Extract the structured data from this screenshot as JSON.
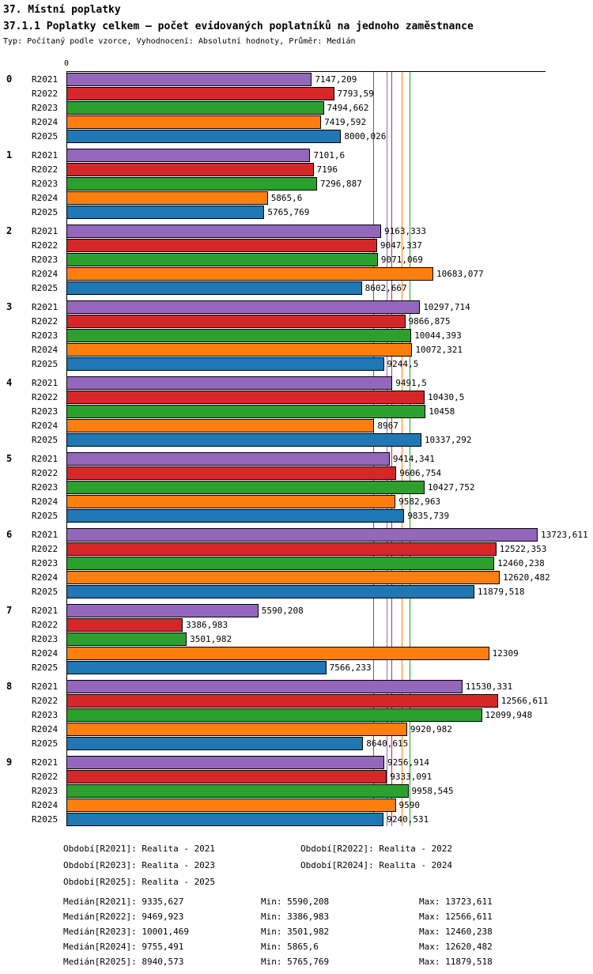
{
  "header": {
    "title": "37. Místní poplatky",
    "subtitle": "37.1.1 Poplatky celkem – počet evidovaných poplatníků na jednoho zaměstnance",
    "meta": "Typ: Počítaný podle vzorce, Vyhodnocení: Absolutní hodnoty, Průměr: Medián"
  },
  "chart_data": {
    "type": "bar",
    "orientation": "horizontal",
    "value_axis_start_label": "0",
    "xlim_max": 13723.611,
    "grid": false,
    "series_order": [
      "R2021",
      "R2022",
      "R2023",
      "R2024",
      "R2025"
    ],
    "series_colors": {
      "R2021": "#9467bd",
      "R2022": "#d62728",
      "R2023": "#2ca02c",
      "R2024": "#ff7f0e",
      "R2025": "#1f77b4"
    },
    "categories": [
      "0",
      "1",
      "2",
      "3",
      "4",
      "5",
      "6",
      "7",
      "8",
      "9"
    ],
    "groups": [
      {
        "label": "0",
        "values": [
          "7147,209",
          "7793,59",
          "7494,662",
          "7419,592",
          "8000,026"
        ]
      },
      {
        "label": "1",
        "values": [
          "7101,6",
          "7196",
          "7296,887",
          "5865,6",
          "5765,769"
        ]
      },
      {
        "label": "2",
        "values": [
          "9163,333",
          "9047,337",
          "9071,069",
          "10683,077",
          "8602,667"
        ]
      },
      {
        "label": "3",
        "values": [
          "10297,714",
          "9866,875",
          "10044,393",
          "10072,321",
          "9244,5"
        ]
      },
      {
        "label": "4",
        "values": [
          "9491,5",
          "10430,5",
          "10458",
          "8967",
          "10337,292"
        ]
      },
      {
        "label": "5",
        "values": [
          "9414,341",
          "9606,754",
          "10427,752",
          "9582,963",
          "9835,739"
        ]
      },
      {
        "label": "6",
        "values": [
          "13723,611",
          "12522,353",
          "12460,238",
          "12620,482",
          "11879,518"
        ]
      },
      {
        "label": "7",
        "values": [
          "5590,208",
          "3386,983",
          "3501,982",
          "12309",
          "7566,233"
        ]
      },
      {
        "label": "8",
        "values": [
          "11530,331",
          "12566,611",
          "12099,948",
          "9920,982",
          "8640,615"
        ]
      },
      {
        "label": "9",
        "values": [
          "9256,914",
          "9333,091",
          "9958,545",
          "9590",
          "9240,531"
        ]
      }
    ],
    "median_lines": {
      "R2021": "9335,627",
      "R2022": "9469,923",
      "R2023": "10001,469",
      "R2024": "9755,491",
      "R2025": "8940,573"
    }
  },
  "footer": {
    "periods": [
      "Období[R2021]: Realita - 2021",
      "Období[R2022]: Realita - 2022",
      "Období[R2023]: Realita - 2023",
      "Období[R2024]: Realita - 2024",
      "Období[R2025]: Realita - 2025"
    ],
    "stats": [
      {
        "median": "Medián[R2021]: 9335,627",
        "min": "Min: 5590,208",
        "max": "Max: 13723,611"
      },
      {
        "median": "Medián[R2022]: 9469,923",
        "min": "Min: 3386,983",
        "max": "Max: 12566,611"
      },
      {
        "median": "Medián[R2023]: 10001,469",
        "min": "Min: 3501,982",
        "max": "Max: 12460,238"
      },
      {
        "median": "Medián[R2024]: 9755,491",
        "min": "Min: 5865,6",
        "max": "Max: 12620,482"
      },
      {
        "median": "Medián[R2025]: 8940,573",
        "min": "Min: 5765,769",
        "max": "Max: 11879,518"
      }
    ]
  }
}
